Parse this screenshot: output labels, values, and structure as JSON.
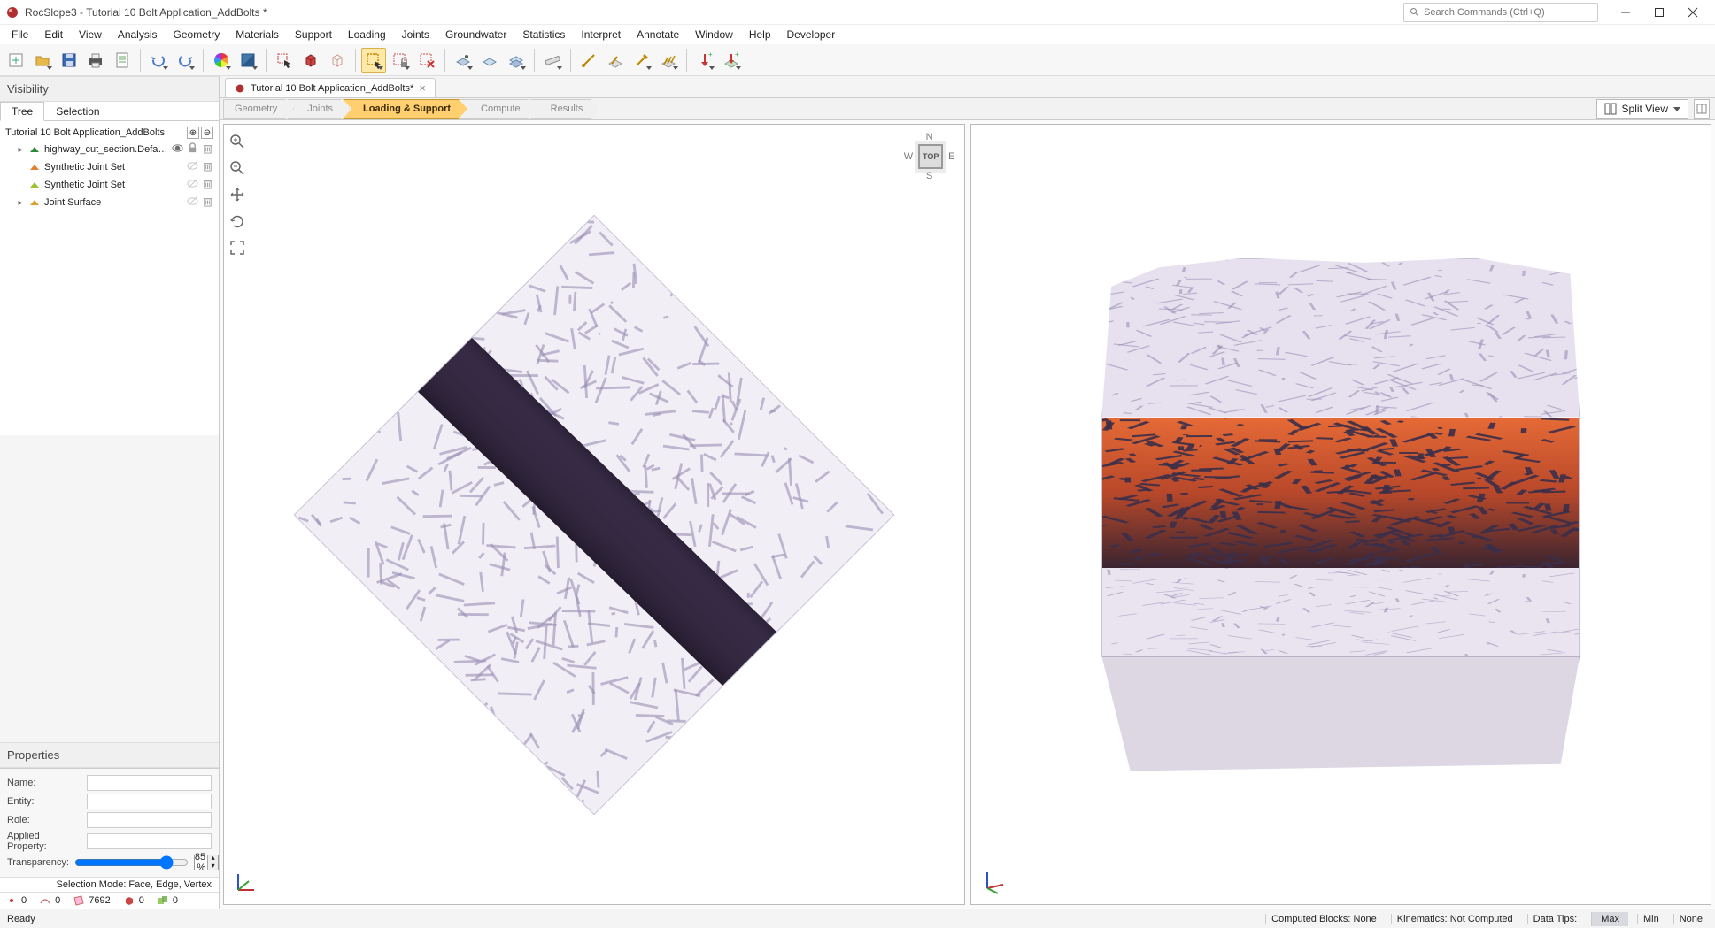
{
  "titlebar": {
    "app_title": "RocSlope3 - Tutorial 10 Bolt Application_AddBolts *",
    "search_placeholder": "Search Commands (Ctrl+Q)",
    "app_icon_color": "#b03030"
  },
  "menubar": {
    "items": [
      "File",
      "Edit",
      "View",
      "Analysis",
      "Geometry",
      "Materials",
      "Support",
      "Loading",
      "Joints",
      "Groundwater",
      "Statistics",
      "Interpret",
      "Annotate",
      "Window",
      "Help",
      "Developer"
    ]
  },
  "toolbar": {
    "groups": [
      {
        "name": "file",
        "buttons": [
          {
            "name": "new-icon",
            "plus": true
          },
          {
            "name": "open-icon",
            "folder": true,
            "dropdown": true
          },
          {
            "name": "save-icon",
            "disk": true
          },
          {
            "name": "print-icon",
            "printer": true
          },
          {
            "name": "report-icon",
            "sheet": true
          }
        ]
      },
      {
        "name": "undo",
        "buttons": [
          {
            "name": "undo-icon",
            "undo": true,
            "dropdown": true
          },
          {
            "name": "redo-icon",
            "redo": true,
            "dropdown": true
          }
        ]
      },
      {
        "name": "color",
        "buttons": [
          {
            "name": "palette-icon",
            "wheel": true,
            "dropdown": true
          },
          {
            "name": "gradient-icon",
            "grad": true,
            "dropdown": true
          }
        ]
      },
      {
        "name": "select",
        "buttons": [
          {
            "name": "pointer-icon",
            "arrow_box": true
          },
          {
            "name": "cube-red-icon",
            "cube": true,
            "fill": "#c44"
          },
          {
            "name": "cube-outline-icon",
            "cube": true,
            "fill": "none",
            "stroke": "#c98"
          }
        ]
      },
      {
        "name": "marquee",
        "buttons": [
          {
            "name": "select-box-icon",
            "selbox": true,
            "active": true,
            "dropdown": true
          },
          {
            "name": "select-lock-icon",
            "selbox_lock": true,
            "dropdown": true
          },
          {
            "name": "select-clear-icon",
            "selbox_x": true
          }
        ]
      },
      {
        "name": "slice",
        "buttons": [
          {
            "name": "slice-icon",
            "slice": true,
            "dropdown": true
          },
          {
            "name": "plane-icon",
            "plane": true
          },
          {
            "name": "planes-icon",
            "planes": true,
            "dropdown": true
          }
        ]
      },
      {
        "name": "measure",
        "buttons": [
          {
            "name": "measure-icon",
            "ruler": true,
            "dropdown": true
          }
        ]
      },
      {
        "name": "bolts",
        "buttons": [
          {
            "name": "bolt-single-icon",
            "bolt": true
          },
          {
            "name": "bolt-surface-icon",
            "bolt_surf": true
          },
          {
            "name": "bolt-edit-icon",
            "bolt_edit": true,
            "dropdown": true
          },
          {
            "name": "bolt-grid-icon",
            "bolt_grid": true,
            "dropdown": true
          }
        ]
      },
      {
        "name": "loads",
        "buttons": [
          {
            "name": "load-add-icon",
            "load": true,
            "dropdown": true
          },
          {
            "name": "load-surface-icon",
            "load_surf": true,
            "dropdown": true
          }
        ]
      }
    ]
  },
  "visibility": {
    "title": "Visibility",
    "tabs": [
      "Tree",
      "Selection"
    ],
    "active_tab": 0,
    "root": "Tutorial 10 Bolt Application_AddBolts",
    "items": [
      {
        "icon": "mesh",
        "color": "#2a8a3a",
        "label": "highway_cut_section.Default.Mesh",
        "visible": true,
        "locked": true,
        "expandable": true
      },
      {
        "icon": "jointset",
        "color": "#e08030",
        "label": "Synthetic Joint Set",
        "visible": false
      },
      {
        "icon": "jointset",
        "color": "#a0c030",
        "label": "Synthetic Joint Set",
        "visible": false
      },
      {
        "icon": "surface",
        "color": "#e0a030",
        "label": "Joint Surface",
        "visible": false,
        "expandable": true
      }
    ]
  },
  "properties": {
    "title": "Properties",
    "fields": {
      "name_label": "Name:",
      "entity_label": "Entity:",
      "role_label": "Role:",
      "applied_label": "Applied Property:",
      "transparency_label": "Transparency:",
      "transparency_value": "85 %"
    }
  },
  "selection_mode": "Selection Mode: Face, Edge, Vertex",
  "counts": {
    "points": "0",
    "curves": "0",
    "surfaces": "7692",
    "volumes": "0",
    "groups": "0"
  },
  "doc_tab": {
    "label": "Tutorial 10 Bolt Application_AddBolts*"
  },
  "workflow": {
    "steps": [
      "Geometry",
      "Joints",
      "Loading & Support",
      "Compute",
      "Results"
    ],
    "active_index": 2
  },
  "view_selector": {
    "label": "Split View"
  },
  "compass": {
    "n": "N",
    "s": "S",
    "e": "E",
    "w": "W",
    "top": "TOP"
  },
  "viewport_left": {
    "background": "#ffffff",
    "diamond_fill": "#f2eef6",
    "diamond_border": "#c9c2d6",
    "stripe_color": "#2d2338",
    "scribble_color": "#9a90b5"
  },
  "viewport_right": {
    "rock_top": "#e7e1ef",
    "rock_mid_top": "#e56a36",
    "rock_mid_bottom": "#3a2430",
    "rock_low": "#e9e4f0",
    "rock_base": "#dcd7e3",
    "border": "#c9c2d6"
  },
  "statusbar": {
    "ready": "Ready",
    "computed_blocks_label": "Computed Blocks:",
    "computed_blocks_value": "None",
    "kinematics_label": "Kinematics:",
    "kinematics_value": "Not Computed",
    "data_tips_label": "Data Tips:",
    "max": "Max",
    "min": "Min",
    "none": "None"
  },
  "triad_axes": {
    "x": "#c03030",
    "y": "#30a030",
    "z": "#3050c0"
  }
}
